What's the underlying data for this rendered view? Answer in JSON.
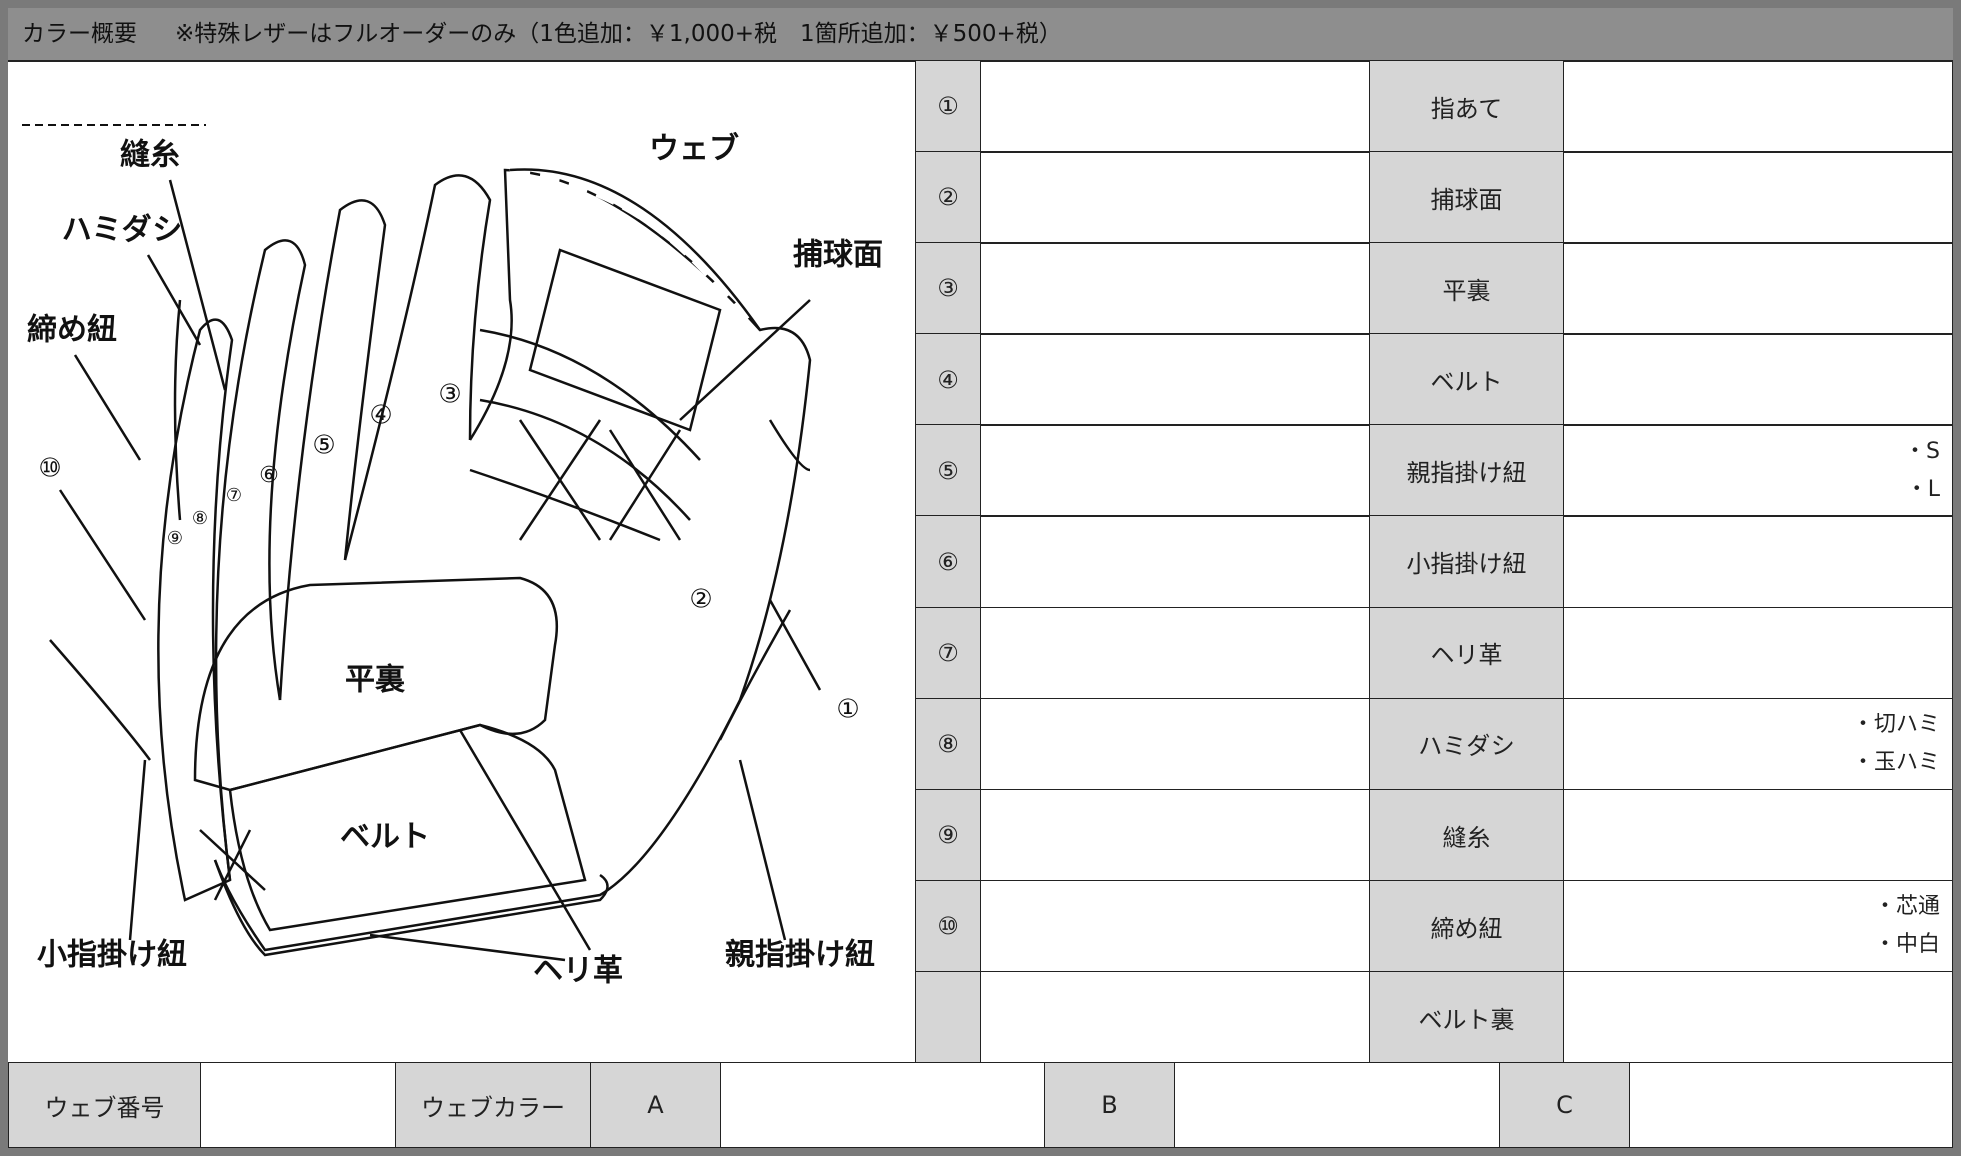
{
  "header": {
    "title": "カラー概要",
    "note": "※特殊レザーはフルオーダーのみ（1色追加：￥1,000+税　1箇所追加：￥500+税）"
  },
  "diagram": {
    "labels": [
      "縫糸",
      "ハミダシ",
      "締め紐",
      "⑩",
      "ウェブ",
      "捕球面",
      "①",
      "②",
      "③",
      "④",
      "⑤",
      "⑥",
      "⑦",
      "⑧",
      "⑨",
      "平裏",
      "ベルト",
      "小指掛け紐",
      "ヘリ革",
      "親指掛け紐"
    ]
  },
  "table": {
    "rows": [
      {
        "num": "①",
        "label": "指あて"
      },
      {
        "num": "②",
        "label": "捕球面"
      },
      {
        "num": "③",
        "label": "平裏"
      },
      {
        "num": "④",
        "label": "ベルト"
      },
      {
        "num": "⑤",
        "label": "親指掛け紐",
        "options": [
          "・S",
          "・L"
        ]
      },
      {
        "num": "⑥",
        "label": "小指掛け紐"
      },
      {
        "num": "⑦",
        "label": "ヘリ革"
      },
      {
        "num": "⑧",
        "label": "ハミダシ",
        "options": [
          "・切ハミ",
          "・玉ハミ"
        ]
      },
      {
        "num": "⑨",
        "label": "縫糸"
      },
      {
        "num": "⑩",
        "label": "締め紐",
        "options": [
          "・芯通",
          "・中白"
        ]
      },
      {
        "label": "ベルト裏"
      }
    ]
  },
  "footer": {
    "web_number": "ウェブ番号",
    "web_color": "ウェブカラー",
    "a": "A",
    "b": "B",
    "c": "C"
  }
}
